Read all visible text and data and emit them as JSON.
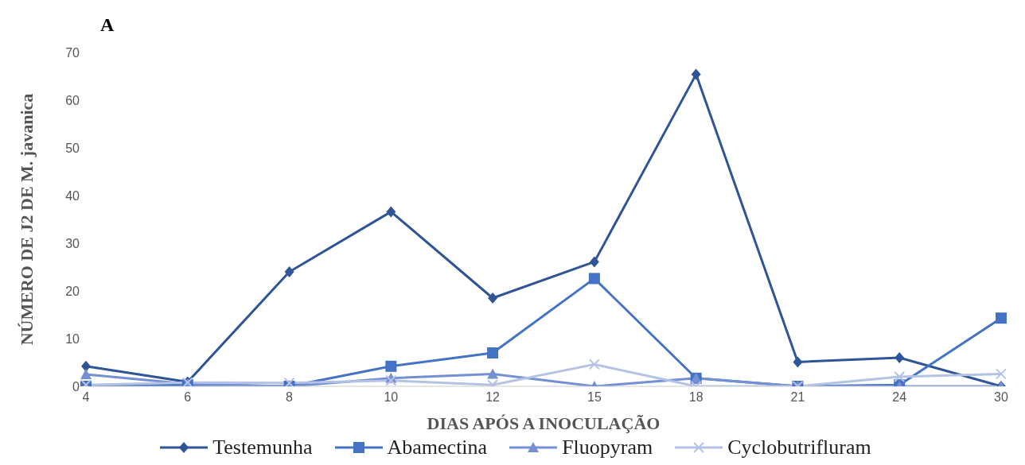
{
  "chart_data": {
    "type": "line",
    "title": "A",
    "xlabel": "DIAS APÓS A INOCULAÇÃO",
    "ylabel": "NÚMERO DE J2 DE M. javanica",
    "categories": [
      "4",
      "6",
      "8",
      "10",
      "12",
      "15",
      "18",
      "21",
      "24",
      "30"
    ],
    "series": [
      {
        "name": "Testemunha",
        "color": "#2f5597",
        "marker": "diamond",
        "values": [
          4.2,
          0.9,
          24,
          36.6,
          18.5,
          26.1,
          65.4,
          5.1,
          6,
          0
        ]
      },
      {
        "name": "Abamectina",
        "color": "#4472c4",
        "marker": "square",
        "values": [
          0,
          0.3,
          0,
          4.2,
          7,
          22.6,
          1.7,
          0,
          0.3,
          14.3
        ]
      },
      {
        "name": "Fluopyram",
        "color": "#7390d4",
        "marker": "triangle",
        "values": [
          2.5,
          0.5,
          0,
          1.7,
          2.6,
          0,
          1.7,
          0,
          0,
          0
        ]
      },
      {
        "name": "Cyclobutrifluram",
        "color": "#b4c2e6",
        "marker": "cross",
        "values": [
          0.3,
          0.8,
          0.7,
          1.2,
          0.3,
          4.6,
          0,
          0,
          2,
          2.6
        ]
      }
    ],
    "ylim": [
      0,
      70
    ],
    "yticks": [
      0,
      10,
      20,
      30,
      40,
      50,
      60,
      70
    ],
    "grid": false,
    "legend": "bottom"
  }
}
